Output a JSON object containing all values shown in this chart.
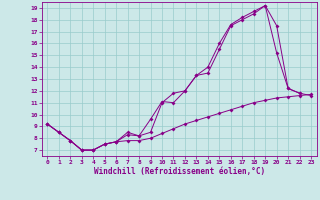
{
  "xlabel": "Windchill (Refroidissement éolien,°C)",
  "xlim": [
    -0.5,
    23.5
  ],
  "ylim": [
    6.5,
    19.5
  ],
  "xticks": [
    0,
    1,
    2,
    3,
    4,
    5,
    6,
    7,
    8,
    9,
    10,
    11,
    12,
    13,
    14,
    15,
    16,
    17,
    18,
    19,
    20,
    21,
    22,
    23
  ],
  "yticks": [
    7,
    8,
    9,
    10,
    11,
    12,
    13,
    14,
    15,
    16,
    17,
    18,
    19
  ],
  "bg_color": "#cce8e8",
  "line_color": "#880088",
  "grid_color": "#99cccc",
  "line1_x": [
    0,
    1,
    2,
    3,
    4,
    5,
    6,
    7,
    8,
    9,
    10,
    11,
    12,
    13,
    14,
    15,
    16,
    17,
    18,
    19,
    20,
    21,
    22
  ],
  "line1_y": [
    9.2,
    8.5,
    7.8,
    7.0,
    7.0,
    7.5,
    7.7,
    8.3,
    8.2,
    9.6,
    11.1,
    11.0,
    12.0,
    13.3,
    13.5,
    15.5,
    17.5,
    18.0,
    18.5,
    19.2,
    15.2,
    12.2,
    11.8
  ],
  "line2_x": [
    0,
    1,
    2,
    3,
    4,
    5,
    6,
    7,
    8,
    9,
    10,
    11,
    12,
    13,
    14,
    15,
    16,
    17,
    18,
    19,
    20,
    21,
    22,
    23
  ],
  "line2_y": [
    9.2,
    8.5,
    7.8,
    7.0,
    7.0,
    7.5,
    7.7,
    8.5,
    8.2,
    8.5,
    11.0,
    11.8,
    12.0,
    13.3,
    14.0,
    16.0,
    17.6,
    18.2,
    18.7,
    19.2,
    17.5,
    12.2,
    11.8,
    11.6
  ],
  "line3_x": [
    0,
    1,
    2,
    3,
    4,
    5,
    6,
    7,
    8,
    9,
    10,
    11,
    12,
    13,
    14,
    15,
    16,
    17,
    18,
    19,
    20,
    21,
    22,
    23
  ],
  "line3_y": [
    9.2,
    8.5,
    7.8,
    7.0,
    7.0,
    7.5,
    7.7,
    7.8,
    7.8,
    8.0,
    8.4,
    8.8,
    9.2,
    9.5,
    9.8,
    10.1,
    10.4,
    10.7,
    11.0,
    11.2,
    11.4,
    11.5,
    11.6,
    11.7
  ]
}
